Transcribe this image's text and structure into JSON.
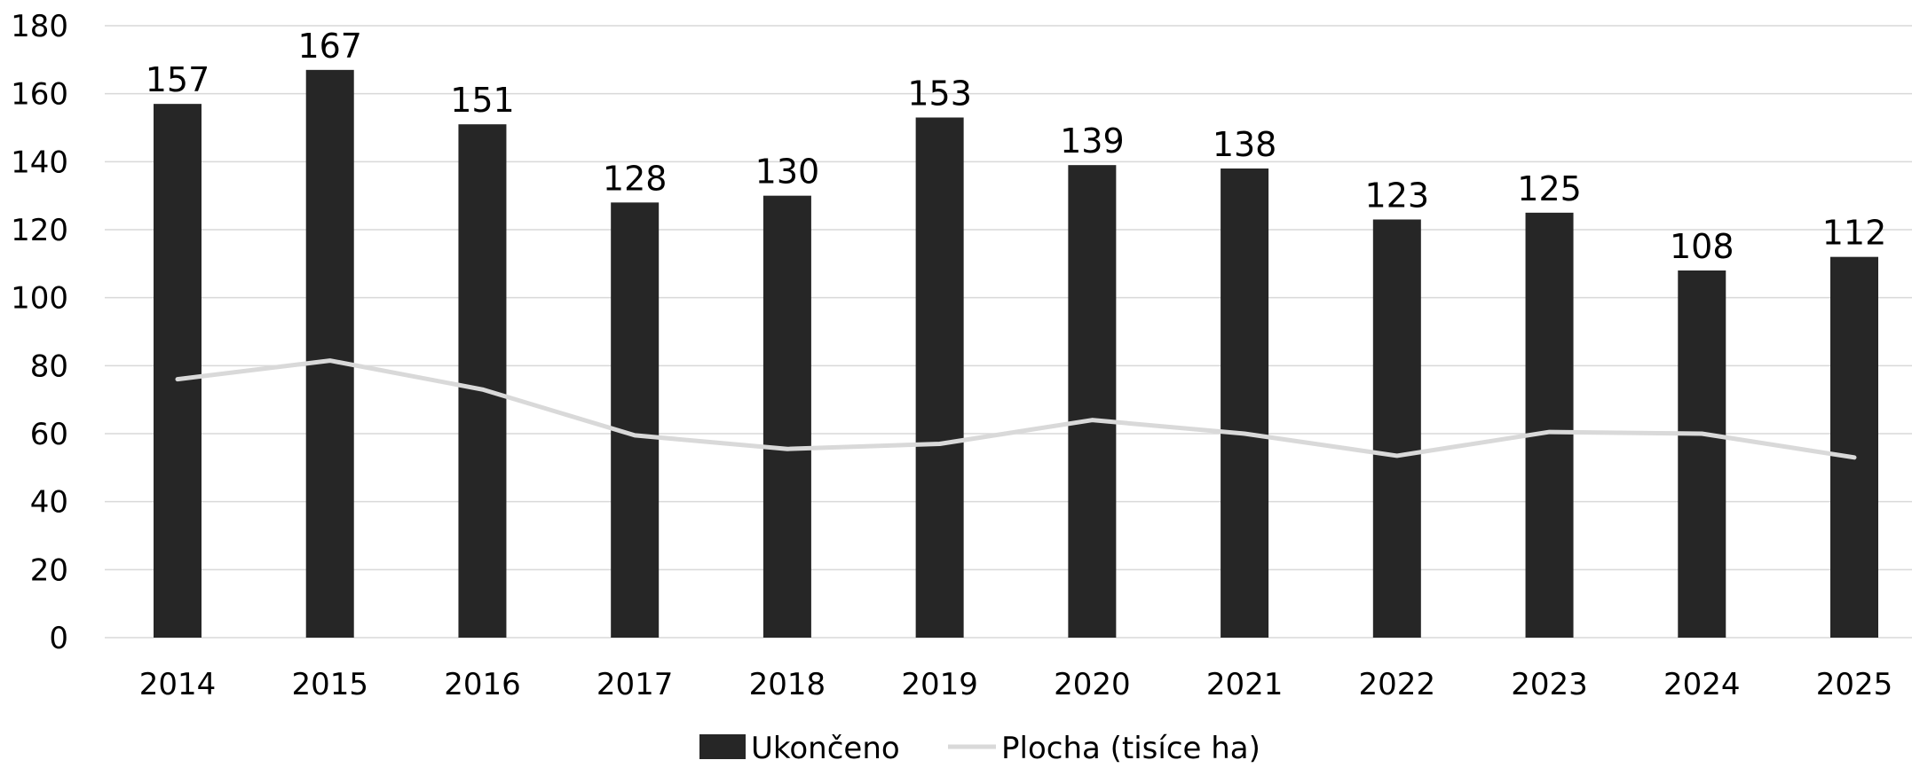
{
  "chart_data": {
    "type": "bar",
    "title": "",
    "xlabel": "",
    "ylabel": "",
    "categories": [
      "2014",
      "2015",
      "2016",
      "2017",
      "2018",
      "2019",
      "2020",
      "2021",
      "2022",
      "2023",
      "2024",
      "2025"
    ],
    "ylim": [
      0,
      180
    ],
    "yticks": [
      0,
      20,
      40,
      60,
      80,
      100,
      120,
      140,
      160,
      180
    ],
    "grid": true,
    "legend_position": "bottom",
    "series": [
      {
        "name": "Ukončeno",
        "kind": "bar",
        "color": "#262626",
        "values": [
          157,
          167,
          151,
          128,
          130,
          153,
          139,
          138,
          123,
          125,
          108,
          112
        ],
        "data_labels": true
      },
      {
        "name": "Plocha (tisíce ha)",
        "kind": "line",
        "color": "#d9d9d9",
        "values": [
          76,
          81.5,
          73,
          59.5,
          55.5,
          57,
          64,
          60,
          53.5,
          60.5,
          60,
          53
        ]
      }
    ]
  }
}
